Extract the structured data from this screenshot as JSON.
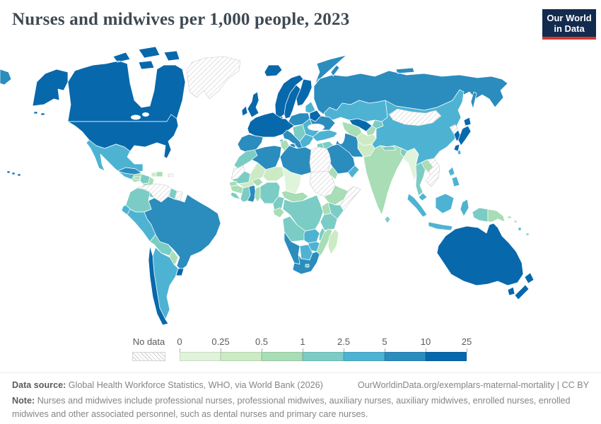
{
  "header": {
    "title": "Nurses and midwives per 1,000 people, 2023"
  },
  "logo": {
    "line1": "Our World",
    "line2": "in Data",
    "bg_color": "#122b4e",
    "accent_color": "#d23a2c"
  },
  "chart_data": {
    "type": "choropleth_map",
    "title": "Nurses and midwives per 1,000 people, 2023",
    "legend": {
      "no_data_label": "No data",
      "tick_labels": [
        "0",
        "0.25",
        "0.5",
        "1",
        "2.5",
        "5",
        "10",
        "25"
      ],
      "band_colors": [
        "#e0f3db",
        "#ccebc5",
        "#a8ddb5",
        "#7bccc4",
        "#4eb3d3",
        "#2b8cbe",
        "#0868ac"
      ],
      "no_data_style": "hatched"
    },
    "regions": [
      {
        "id": "russia",
        "name": "Russia",
        "band": 6
      },
      {
        "id": "canada",
        "name": "Canada",
        "band": 7
      },
      {
        "id": "alaska",
        "name": "Alaska (United States)",
        "band": 7
      },
      {
        "id": "usa",
        "name": "United States",
        "band": 7
      },
      {
        "id": "hawaii",
        "name": "Hawaii (United States)",
        "band": 7
      },
      {
        "id": "china",
        "name": "China",
        "band": 5
      },
      {
        "id": "kazakhstan",
        "name": "Kazakhstan",
        "band": 5
      },
      {
        "id": "india",
        "name": "India",
        "band": 3
      },
      {
        "id": "brazil",
        "name": "Brazil",
        "band": 6
      },
      {
        "id": "australia",
        "name": "Australia",
        "band": 7
      },
      {
        "id": "greenland",
        "name": "Greenland",
        "band": 0
      },
      {
        "id": "iceland",
        "name": "Iceland",
        "band": 7
      },
      {
        "id": "mexico",
        "name": "Mexico",
        "band": 5
      },
      {
        "id": "guatemala",
        "name": "Guatemala",
        "band": 3
      },
      {
        "id": "honduras",
        "name": "Honduras",
        "band": 4
      },
      {
        "id": "nicaragua",
        "name": "Nicaragua",
        "band": 3
      },
      {
        "id": "costa-rica",
        "name": "Costa Rica",
        "band": 4
      },
      {
        "id": "panama",
        "name": "Panama",
        "band": 4
      },
      {
        "id": "cuba",
        "name": "Cuba",
        "band": 6
      },
      {
        "id": "jamaica",
        "name": "Jamaica",
        "band": 3
      },
      {
        "id": "haiti",
        "name": "Haiti",
        "band": 2
      },
      {
        "id": "dominican-republic",
        "name": "Dominican Republic",
        "band": 3
      },
      {
        "id": "puerto-rico",
        "name": "Puerto Rico",
        "band": 0
      },
      {
        "id": "trinidad",
        "name": "Trinidad and Tobago",
        "band": 6
      },
      {
        "id": "colombia",
        "name": "Colombia",
        "band": 4
      },
      {
        "id": "venezuela",
        "name": "Venezuela",
        "band": 0
      },
      {
        "id": "guyana",
        "name": "Guyana",
        "band": 4
      },
      {
        "id": "suriname",
        "name": "Suriname",
        "band": 0
      },
      {
        "id": "ecuador",
        "name": "Ecuador",
        "band": 5
      },
      {
        "id": "peru",
        "name": "Peru",
        "band": 5
      },
      {
        "id": "bolivia",
        "name": "Bolivia",
        "band": 4
      },
      {
        "id": "paraguay",
        "name": "Paraguay",
        "band": 3
      },
      {
        "id": "argentina",
        "name": "Argentina",
        "band": 5
      },
      {
        "id": "chile",
        "name": "Chile",
        "band": 7
      },
      {
        "id": "uruguay",
        "name": "Uruguay",
        "band": 7
      },
      {
        "id": "uk",
        "name": "United Kingdom",
        "band": 7
      },
      {
        "id": "ireland",
        "name": "Ireland",
        "band": 7
      },
      {
        "id": "norway",
        "name": "Norway",
        "band": 7
      },
      {
        "id": "sweden",
        "name": "Sweden",
        "band": 7
      },
      {
        "id": "finland",
        "name": "Finland",
        "band": 7
      },
      {
        "id": "denmark",
        "name": "Denmark",
        "band": 7
      },
      {
        "id": "western-europe",
        "name": "France / Germany / Benelux / Alpine countries",
        "band": 7
      },
      {
        "id": "iberia",
        "name": "Spain and Portugal",
        "band": 6
      },
      {
        "id": "italy",
        "name": "Italy",
        "band": 6
      },
      {
        "id": "central-europe",
        "name": "Poland / Czechia / Slovakia / Hungary",
        "band": 6
      },
      {
        "id": "baltics",
        "name": "Baltic states",
        "band": 5
      },
      {
        "id": "belarus",
        "name": "Belarus",
        "band": 7
      },
      {
        "id": "ukraine",
        "name": "Ukraine",
        "band": 6
      },
      {
        "id": "romania-bulgaria",
        "name": "Romania and Bulgaria",
        "band": 5
      },
      {
        "id": "balkans",
        "name": "Western Balkans",
        "band": 4
      },
      {
        "id": "greece",
        "name": "Greece",
        "band": 5
      },
      {
        "id": "turkey",
        "name": "Turkey",
        "band": 5
      },
      {
        "id": "uzbekistan",
        "name": "Uzbekistan",
        "band": 7
      },
      {
        "id": "turkmenistan",
        "name": "Turkmenistan",
        "band": 3
      },
      {
        "id": "kyrgyzstan",
        "name": "Kyrgyzstan",
        "band": 4
      },
      {
        "id": "tajikistan",
        "name": "Tajikistan",
        "band": 3
      },
      {
        "id": "afghanistan",
        "name": "Afghanistan",
        "band": 2
      },
      {
        "id": "pakistan",
        "name": "Pakistan",
        "band": 2
      },
      {
        "id": "iran",
        "name": "Iran",
        "band": 6
      },
      {
        "id": "iraq",
        "name": "Iraq",
        "band": 4
      },
      {
        "id": "syria",
        "name": "Syria",
        "band": 4
      },
      {
        "id": "saudi-arabia",
        "name": "Saudi Arabia",
        "band": 6
      },
      {
        "id": "yemen",
        "name": "Yemen",
        "band": 3
      },
      {
        "id": "oman",
        "name": "Oman",
        "band": 5
      },
      {
        "id": "nepal",
        "name": "Nepal",
        "band": 4
      },
      {
        "id": "bangladesh",
        "name": "Bangladesh",
        "band": 4
      },
      {
        "id": "sri-lanka",
        "name": "Sri Lanka",
        "band": 4
      },
      {
        "id": "myanmar",
        "name": "Myanmar",
        "band": 1
      },
      {
        "id": "thailand",
        "name": "Thailand",
        "band": 4
      },
      {
        "id": "laos",
        "name": "Laos",
        "band": 3
      },
      {
        "id": "vietnam-cambodia",
        "name": "Vietnam and Cambodia",
        "band": 0
      },
      {
        "id": "malaysia",
        "name": "Malaysia",
        "band": 5
      },
      {
        "id": "mongolia",
        "name": "Mongolia",
        "band": 0
      },
      {
        "id": "north-korea",
        "name": "North Korea",
        "band": 0
      },
      {
        "id": "south-korea",
        "name": "South Korea",
        "band": 7
      },
      {
        "id": "japan",
        "name": "Japan",
        "band": 7
      },
      {
        "id": "sakhalin",
        "name": "Sakhalin (Russia)",
        "band": 6
      },
      {
        "id": "taiwan",
        "name": "Taiwan",
        "band": 5
      },
      {
        "id": "philippines",
        "name": "Philippines",
        "band": 5
      },
      {
        "id": "indonesia",
        "name": "Indonesia",
        "band": 5
      },
      {
        "id": "west-papua",
        "name": "Western New Guinea (Indonesia)",
        "band": 4
      },
      {
        "id": "papua-new-guinea",
        "name": "Papua New Guinea",
        "band": 3
      },
      {
        "id": "solomon-islands",
        "name": "Solomon Islands",
        "band": 3
      },
      {
        "id": "vanuatu",
        "name": "Vanuatu",
        "band": 5
      },
      {
        "id": "fiji",
        "name": "Fiji",
        "band": 4
      },
      {
        "id": "new-zealand",
        "name": "New Zealand",
        "band": 7
      },
      {
        "id": "morocco",
        "name": "Morocco",
        "band": 4
      },
      {
        "id": "western-sahara",
        "name": "Western Sahara",
        "band": 0
      },
      {
        "id": "algeria",
        "name": "Algeria",
        "band": 6
      },
      {
        "id": "tunisia",
        "name": "Tunisia",
        "band": 3
      },
      {
        "id": "libya",
        "name": "Libya",
        "band": 6
      },
      {
        "id": "egypt",
        "name": "Egypt",
        "band": 0
      },
      {
        "id": "sudan",
        "name": "Sudan",
        "band": 0
      },
      {
        "id": "mauritania",
        "name": "Mauritania",
        "band": 4
      },
      {
        "id": "mali",
        "name": "Mali",
        "band": 2
      },
      {
        "id": "burkina-faso",
        "name": "Burkina Faso",
        "band": 3
      },
      {
        "id": "niger",
        "name": "Niger",
        "band": 2
      },
      {
        "id": "chad",
        "name": "Chad",
        "band": 1
      },
      {
        "id": "senegal",
        "name": "Senegal",
        "band": 3
      },
      {
        "id": "guinea",
        "name": "Guinea",
        "band": 3
      },
      {
        "id": "sierra-leone-liberia",
        "name": "Sierra Leone and Liberia",
        "band": 4
      },
      {
        "id": "ivory-coast",
        "name": "Côte d'Ivoire",
        "band": 4
      },
      {
        "id": "ghana",
        "name": "Ghana",
        "band": 6
      },
      {
        "id": "togo-benin",
        "name": "Togo and Benin",
        "band": 3
      },
      {
        "id": "nigeria",
        "name": "Nigeria",
        "band": 4
      },
      {
        "id": "cameroon",
        "name": "Cameroon",
        "band": 4
      },
      {
        "id": "central-african-republic",
        "name": "Central African Republic",
        "band": 3
      },
      {
        "id": "ethiopia",
        "name": "Ethiopia",
        "band": 3
      },
      {
        "id": "somalia",
        "name": "Somalia",
        "band": 0
      },
      {
        "id": "kenya",
        "name": "Kenya",
        "band": 4
      },
      {
        "id": "uganda",
        "name": "Uganda",
        "band": 3
      },
      {
        "id": "tanzania",
        "name": "Tanzania",
        "band": 4
      },
      {
        "id": "dr-congo",
        "name": "Democratic Republic of Congo",
        "band": 4
      },
      {
        "id": "congo-gabon",
        "name": "Congo and Gabon",
        "band": 3
      },
      {
        "id": "angola",
        "name": "Angola",
        "band": 4
      },
      {
        "id": "zambia",
        "name": "Zambia",
        "band": 5
      },
      {
        "id": "malawi",
        "name": "Malawi",
        "band": 4
      },
      {
        "id": "mozambique",
        "name": "Mozambique",
        "band": 3
      },
      {
        "id": "zimbabwe",
        "name": "Zimbabwe",
        "band": 5
      },
      {
        "id": "botswana",
        "name": "Botswana",
        "band": 5
      },
      {
        "id": "namibia",
        "name": "Namibia",
        "band": 6
      },
      {
        "id": "south-africa",
        "name": "South Africa",
        "band": 6
      },
      {
        "id": "lesotho",
        "name": "Lesotho",
        "band": 4
      },
      {
        "id": "madagascar",
        "name": "Madagascar",
        "band": 2
      }
    ]
  },
  "footer": {
    "data_source_label": "Data source:",
    "data_source_text": "Global Health Workforce Statistics, WHO, via World Bank (2026)",
    "link_text": "OurWorldinData.org/exemplars-maternal-mortality | CC BY",
    "note_label": "Note:",
    "note_text": "Nurses and midwives include professional nurses, professional midwives, auxiliary nurses, auxiliary midwives, enrolled nurses, enrolled midwives and other associated personnel, such as dental nurses and primary care nurses."
  }
}
